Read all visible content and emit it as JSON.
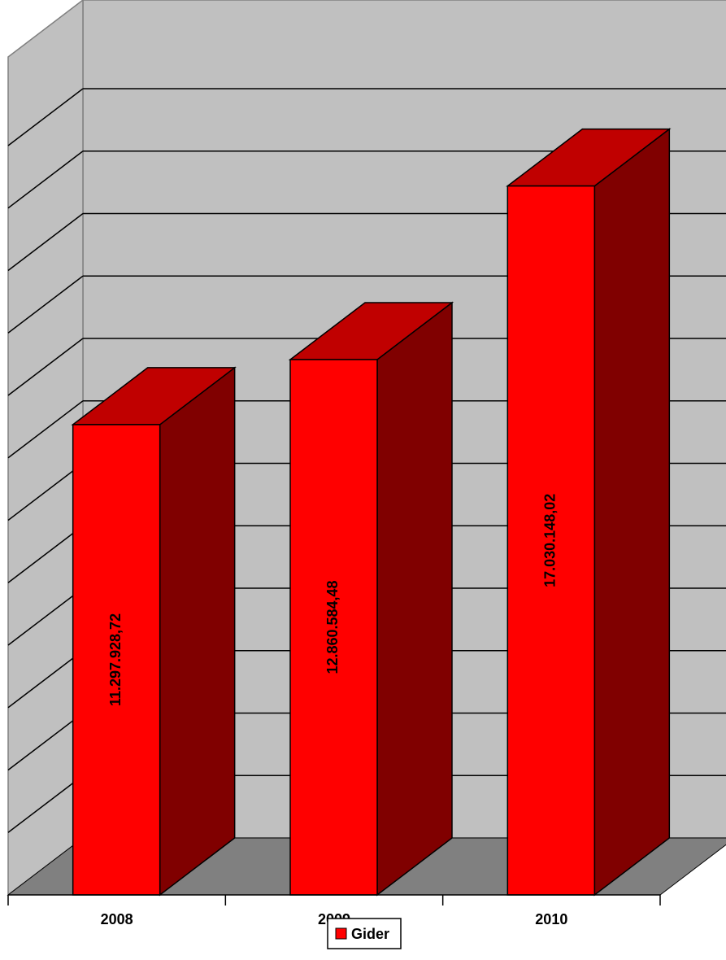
{
  "chart_data": {
    "type": "bar",
    "projection": "3d-column",
    "title": "",
    "xlabel": "",
    "ylabel": "",
    "categories": [
      "2008",
      "2009",
      "2010"
    ],
    "series": [
      {
        "name": "Gider",
        "values": [
          11297928.72,
          12860584.48,
          17030148.02
        ],
        "labels": [
          "11.297.928,72",
          "12.860.584,48",
          "17.030.148,02"
        ]
      }
    ],
    "ylim": [
      0,
      18000000
    ],
    "y_tick_step": 1500000,
    "y_tick_labels_visible": false,
    "grid": true,
    "legend": {
      "position": "bottom",
      "entries": [
        "Gider"
      ]
    },
    "colors": {
      "bar_front": "#ff0000",
      "bar_top": "#c00000",
      "bar_side": "#800000",
      "back_wall": "#c0c0c0",
      "side_wall": "#c0c0c0",
      "floor": "#808080",
      "gridline": "#000000",
      "outline": "#000000"
    }
  }
}
